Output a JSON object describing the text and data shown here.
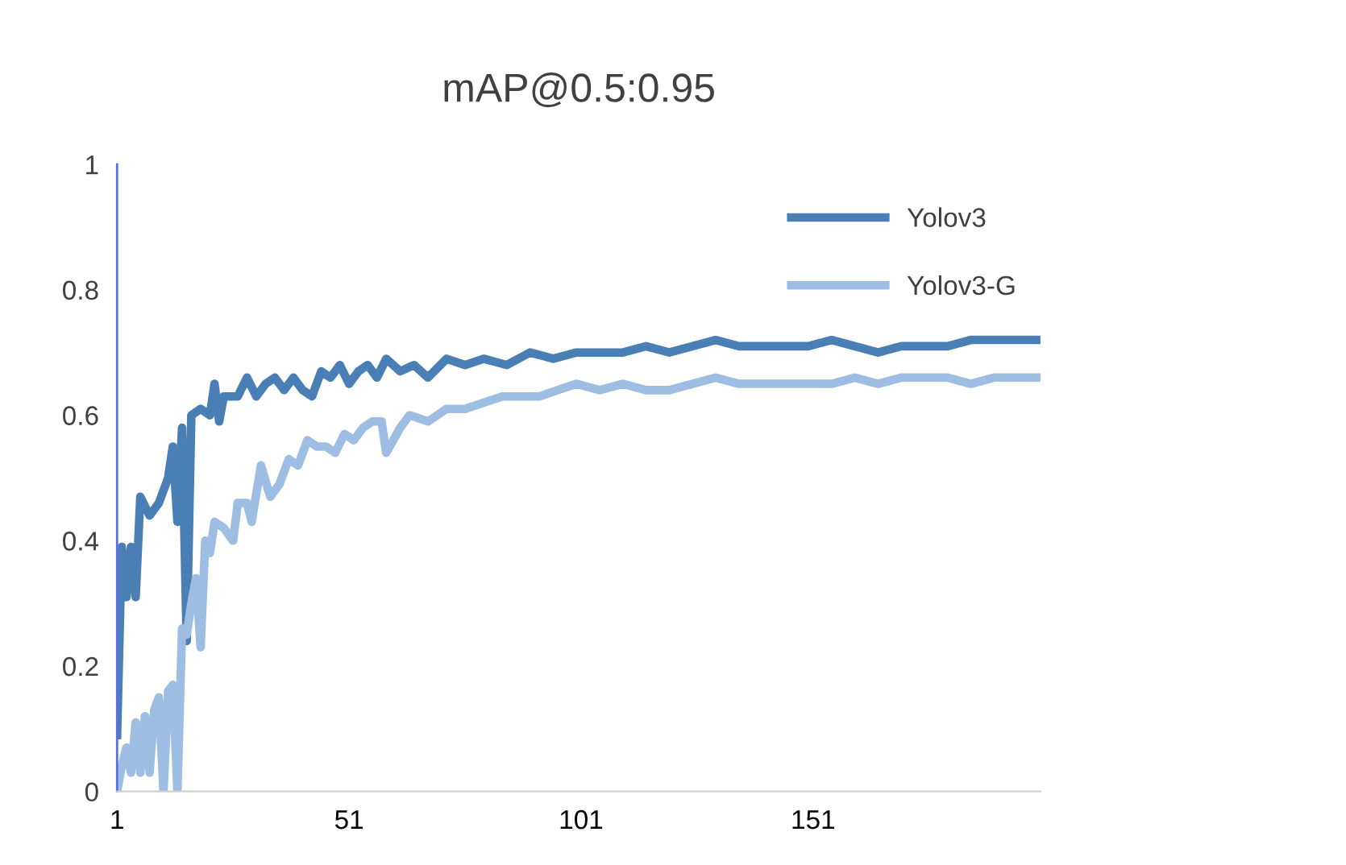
{
  "chart_data": {
    "type": "line",
    "title": "mAP@0.5:0.95",
    "xlim": [
      1,
      200
    ],
    "xticks": [
      1,
      51,
      101,
      151
    ],
    "ylim": [
      0,
      1
    ],
    "yticks": [
      0,
      0.2,
      0.4,
      0.6,
      0.8,
      1
    ],
    "grid": false,
    "legend": "top right",
    "marker": "none",
    "line_style": "solid",
    "series": [
      {
        "name": "Yolov3",
        "color": "#4a7fb5",
        "x": [
          1,
          2,
          3,
          4,
          5,
          6,
          8,
          10,
          12,
          13,
          14,
          15,
          16,
          17,
          19,
          21,
          22,
          23,
          24,
          27,
          29,
          31,
          33,
          35,
          37,
          39,
          41,
          43,
          45,
          47,
          49,
          51,
          53,
          55,
          57,
          59,
          62,
          65,
          68,
          72,
          76,
          80,
          85,
          90,
          95,
          100,
          105,
          110,
          115,
          120,
          125,
          130,
          135,
          140,
          145,
          150,
          155,
          160,
          165,
          170,
          175,
          180,
          185,
          190,
          195,
          200
        ],
        "values": [
          0.09,
          0.39,
          0.31,
          0.39,
          0.31,
          0.47,
          0.44,
          0.46,
          0.5,
          0.55,
          0.43,
          0.58,
          0.24,
          0.6,
          0.61,
          0.6,
          0.65,
          0.59,
          0.63,
          0.63,
          0.66,
          0.63,
          0.65,
          0.66,
          0.64,
          0.66,
          0.64,
          0.63,
          0.67,
          0.66,
          0.68,
          0.65,
          0.67,
          0.68,
          0.66,
          0.69,
          0.67,
          0.68,
          0.66,
          0.69,
          0.68,
          0.69,
          0.68,
          0.7,
          0.69,
          0.7,
          0.7,
          0.7,
          0.71,
          0.7,
          0.71,
          0.72,
          0.71,
          0.71,
          0.71,
          0.71,
          0.72,
          0.71,
          0.7,
          0.71,
          0.71,
          0.71,
          0.72,
          0.72,
          0.72,
          0.72
        ]
      },
      {
        "name": "Yolov3-G",
        "color": "#9dbde3",
        "x": [
          1,
          2,
          3,
          4,
          5,
          6,
          7,
          8,
          9,
          10,
          11,
          12,
          13,
          14,
          15,
          16,
          17,
          18,
          19,
          20,
          21,
          22,
          24,
          26,
          27,
          29,
          30,
          32,
          34,
          36,
          38,
          40,
          42,
          44,
          46,
          48,
          50,
          52,
          54,
          56,
          58,
          59,
          62,
          64,
          68,
          72,
          76,
          80,
          84,
          88,
          92,
          96,
          100,
          105,
          110,
          115,
          120,
          125,
          130,
          135,
          140,
          145,
          150,
          155,
          160,
          165,
          170,
          175,
          180,
          185,
          190,
          195,
          200
        ],
        "values": [
          0.0,
          0.04,
          0.07,
          0.03,
          0.11,
          0.03,
          0.12,
          0.03,
          0.13,
          0.15,
          0.0,
          0.16,
          0.17,
          0.0,
          0.26,
          0.25,
          0.3,
          0.34,
          0.23,
          0.4,
          0.38,
          0.43,
          0.42,
          0.4,
          0.46,
          0.46,
          0.43,
          0.52,
          0.47,
          0.49,
          0.53,
          0.52,
          0.56,
          0.55,
          0.55,
          0.54,
          0.57,
          0.56,
          0.58,
          0.59,
          0.59,
          0.54,
          0.58,
          0.6,
          0.59,
          0.61,
          0.61,
          0.62,
          0.63,
          0.63,
          0.63,
          0.64,
          0.65,
          0.64,
          0.65,
          0.64,
          0.64,
          0.65,
          0.66,
          0.65,
          0.65,
          0.65,
          0.65,
          0.65,
          0.66,
          0.65,
          0.66,
          0.66,
          0.66,
          0.65,
          0.66,
          0.66,
          0.66
        ]
      }
    ]
  }
}
